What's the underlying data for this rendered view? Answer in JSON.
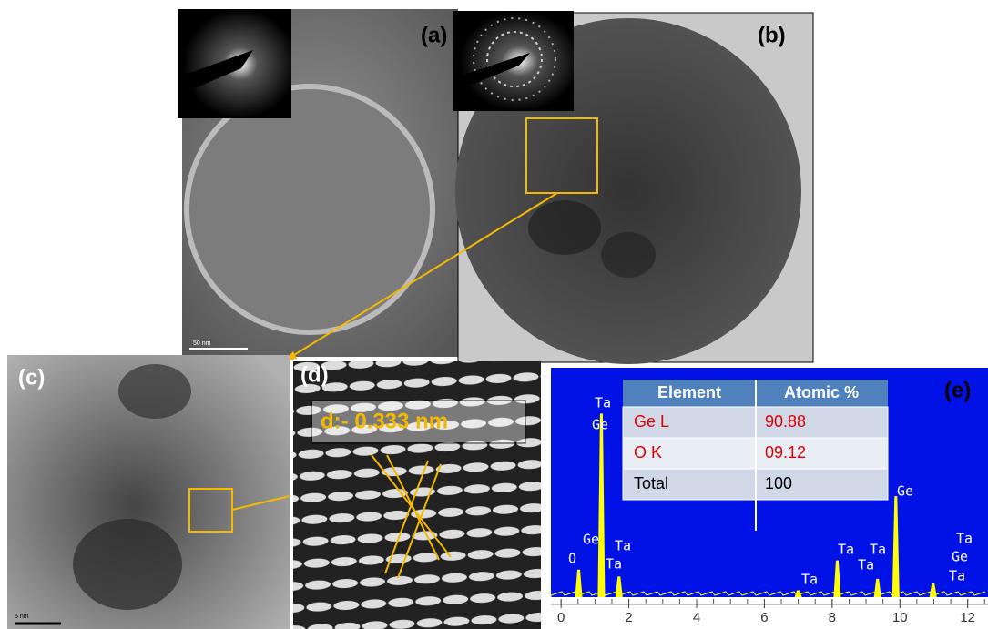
{
  "panels": {
    "a": "(a)",
    "b": "(b)",
    "c": "(c)",
    "d": "(d)",
    "e": "(e)"
  },
  "scale_bars": {
    "a": "50 nm",
    "c": "5 nm"
  },
  "d_spacing": "d:- 0.333 nm",
  "table": {
    "header": [
      "Element",
      "Atomic  %"
    ],
    "rows": [
      [
        "Ge L",
        "90.88"
      ],
      [
        "O  K",
        "09.12"
      ],
      [
        "Total",
        "100"
      ]
    ]
  },
  "spectrum": {
    "xlim": [
      -0.3,
      12.6
    ],
    "xticks": [
      0,
      2,
      4,
      6,
      8,
      10,
      12
    ],
    "ylim": [
      0,
      100
    ],
    "peaks": [
      {
        "x": 0.52,
        "y": 12
      },
      {
        "x": 1.19,
        "y": 80
      },
      {
        "x": 1.71,
        "y": 9
      },
      {
        "x": 7.0,
        "y": 3
      },
      {
        "x": 8.15,
        "y": 16
      },
      {
        "x": 9.34,
        "y": 8
      },
      {
        "x": 9.88,
        "y": 44
      },
      {
        "x": 10.98,
        "y": 6
      }
    ],
    "labels": [
      "Ta",
      "Ge",
      "Ge",
      "Ta",
      "O",
      "Ta",
      "Ta",
      "Ta",
      "Ta",
      "Ta",
      "Ge",
      "Ta",
      "Ge",
      "Ta"
    ]
  }
}
